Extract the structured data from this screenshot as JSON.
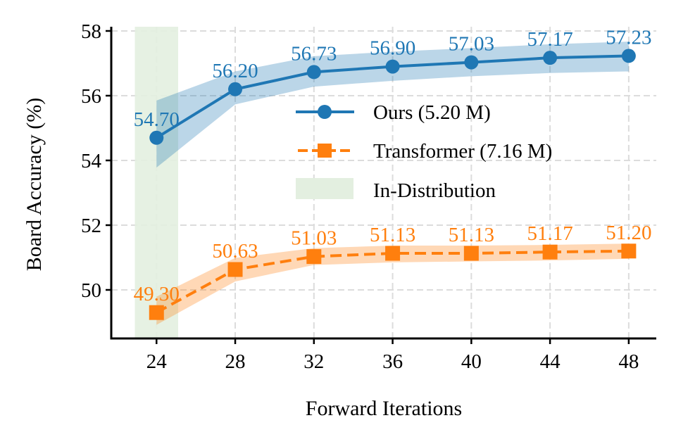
{
  "chart_data": {
    "type": "line",
    "title": "",
    "xlabel": "Forward Iterations",
    "ylabel": "Board Accuracy (%)",
    "x": [
      24,
      28,
      32,
      36,
      40,
      44,
      48
    ],
    "xticks": [
      24,
      28,
      32,
      36,
      40,
      44,
      48
    ],
    "yticks": [
      50,
      52,
      54,
      56,
      58
    ],
    "xlim": [
      21.7,
      49.4
    ],
    "ylim": [
      48.5,
      58.13
    ],
    "grid": true,
    "legend_position": "center-right",
    "series": [
      {
        "name": "Ours (5.20 M)",
        "color": "#1f77b4",
        "marker": "circle",
        "linestyle": "solid",
        "values": [
          54.7,
          56.2,
          56.73,
          56.9,
          57.03,
          57.17,
          57.23
        ],
        "labels": [
          "54.70",
          "56.20",
          "56.73",
          "56.90",
          "57.03",
          "57.17",
          "57.23"
        ],
        "band_upper": [
          55.85,
          56.75,
          57.22,
          57.36,
          57.47,
          57.59,
          57.67
        ],
        "band_lower": [
          53.78,
          55.73,
          56.28,
          56.46,
          56.6,
          56.7,
          56.75
        ]
      },
      {
        "name": "Transformer (7.16 M)",
        "color": "#ff7f0e",
        "marker": "square",
        "linestyle": "dashed",
        "values": [
          49.3,
          50.63,
          51.03,
          51.13,
          51.13,
          51.17,
          51.2
        ],
        "labels": [
          "49.30",
          "50.63",
          "51.03",
          "51.13",
          "51.13",
          "51.17",
          "51.20"
        ],
        "band_upper": [
          49.79,
          50.99,
          51.29,
          51.37,
          51.37,
          51.39,
          51.43
        ],
        "band_lower": [
          48.92,
          50.26,
          50.77,
          50.85,
          50.88,
          50.91,
          50.96
        ]
      }
    ],
    "shaded_region": {
      "name": "In-Distribution",
      "x_range": [
        22.9,
        25.1
      ],
      "color": "#e3efe0"
    }
  }
}
